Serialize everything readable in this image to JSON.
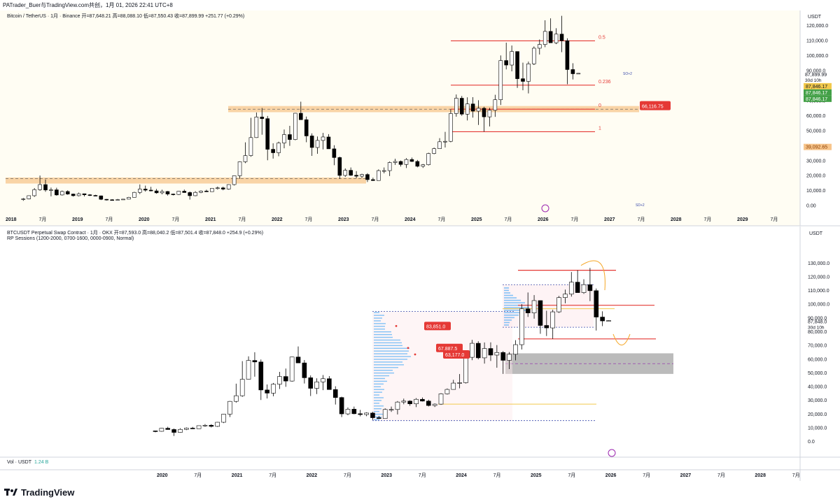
{
  "header": "PATrader_Buer与TradingView.com共创，1月 01, 2026 22:41 UTC+8",
  "brand": "TradingView",
  "colors": {
    "up": "#ffffff",
    "down": "#000000",
    "red": "#e53935",
    "orange": "#f7c58c",
    "bg_top": "#fffdf3",
    "blue": "#3949ab",
    "gold": "#f2c94c"
  },
  "top": {
    "title": "Bitcoin / TetherUS · 1月 · Binance  开=87,648.21  高=88,088.10  低=87,550.43  收=87,899.99  +251.77 (+0.29%)",
    "currency": "USDT",
    "y_ticks": [
      "120,000.0",
      "110,000.0",
      "100,000.0",
      "90,000.0",
      "80,000.0",
      "70,000.0",
      "60,000.0",
      "50,000.0",
      "40,000.0",
      "30,000.0",
      "20,000.0",
      "10,000.0",
      "0.00"
    ],
    "x_ticks": [
      "2018",
      "7月",
      "2019",
      "7月",
      "2020",
      "7月",
      "2021",
      "7月",
      "2022",
      "7月",
      "2023",
      "7月",
      "2024",
      "7月",
      "2025",
      "7月",
      "2026",
      "7月",
      "2027",
      "7月",
      "2028",
      "7月",
      "2029",
      "7月"
    ],
    "price_label": "87,899.99",
    "countdown": "30d 10h",
    "badges": [
      "87,846.17",
      "87,846.17",
      "87,846.17",
      "39,092.65"
    ],
    "fib_labels": [
      "1",
      "0.5",
      "0.236",
      "0"
    ],
    "zone_label": "66,116.75",
    "so_label": "SO+2",
    "sd_label": "SD+2"
  },
  "bottom": {
    "title": "BTCUSDT Perpetual Swap Contract · 1月 · OKX  开=87,593.0  高=88,040.2  低=87,501.4  收=87,848.0  +254.9 (+0.29%)",
    "subtitle": "RP Sessions (1200-2000, 0700-1600, 0000-0900, Normal)",
    "currency": "USDT",
    "y_ticks": [
      "130,000.0",
      "120,000.0",
      "110,000.0",
      "100,000.0",
      "90,000.0",
      "80,000.0",
      "70,000.0",
      "60,000.0",
      "50,000.0",
      "40,000.0",
      "30,000.0",
      "20,000.0",
      "10,000.0",
      "0.0"
    ],
    "x_ticks": [
      "2020",
      "7月",
      "2021",
      "7月",
      "2022",
      "7月",
      "2023",
      "7月",
      "2024",
      "7月",
      "2025",
      "7月",
      "2026",
      "7月",
      "2027",
      "7月",
      "2028",
      "7月"
    ],
    "price_label": "87,848.0",
    "countdown": "30d 10h",
    "labels": [
      "83,851.0",
      "67,887.5",
      "63,177.0"
    ],
    "vol_label": "Vol · USDT",
    "vol_value": "1.24 B"
  },
  "chart_data": [
    {
      "type": "candlestick",
      "title": "Bitcoin / TetherUS · 1月 · Binance",
      "x_start": "2017-09",
      "interval": "1M",
      "ylim": [
        -2000,
        126000
      ],
      "ohlc": [
        [
          4300,
          4900,
          3000,
          4300
        ],
        [
          4300,
          6500,
          4000,
          6400
        ],
        [
          6400,
          11500,
          5600,
          10400
        ],
        [
          10400,
          19800,
          9700,
          13800
        ],
        [
          13800,
          17200,
          9000,
          10200
        ],
        [
          10200,
          11800,
          6000,
          10300
        ],
        [
          10300,
          11700,
          6400,
          6900
        ],
        [
          6900,
          9800,
          6500,
          9200
        ],
        [
          9200,
          10000,
          7000,
          7500
        ],
        [
          7500,
          7800,
          5800,
          6400
        ],
        [
          6400,
          8500,
          6000,
          7700
        ],
        [
          7700,
          7700,
          5900,
          7000
        ],
        [
          7000,
          7400,
          6200,
          6600
        ],
        [
          6600,
          7000,
          6200,
          6300
        ],
        [
          6300,
          6500,
          3500,
          4000
        ],
        [
          4000,
          4200,
          3200,
          3700
        ],
        [
          3700,
          4100,
          3400,
          3400
        ],
        [
          3400,
          4200,
          3400,
          3800
        ],
        [
          3800,
          4100,
          3700,
          4100
        ],
        [
          4100,
          5600,
          4000,
          5300
        ],
        [
          5300,
          9000,
          5300,
          8600
        ],
        [
          8600,
          13900,
          7500,
          10800
        ],
        [
          10800,
          13100,
          9100,
          10100
        ],
        [
          10100,
          12300,
          9300,
          9600
        ],
        [
          9600,
          10900,
          7700,
          8300
        ],
        [
          8300,
          10400,
          7300,
          9200
        ],
        [
          9200,
          9500,
          6500,
          7500
        ],
        [
          7500,
          7800,
          6600,
          7200
        ],
        [
          7200,
          9600,
          6900,
          9400
        ],
        [
          9400,
          10500,
          8400,
          8500
        ],
        [
          8500,
          9200,
          3800,
          6400
        ],
        [
          6400,
          9400,
          6100,
          8600
        ],
        [
          8600,
          10000,
          8100,
          9500
        ],
        [
          9500,
          10400,
          8900,
          9100
        ],
        [
          9100,
          11400,
          9000,
          11300
        ],
        [
          11300,
          12500,
          10500,
          11600
        ],
        [
          11600,
          12400,
          10000,
          10800
        ],
        [
          10800,
          14000,
          10400,
          13800
        ],
        [
          13800,
          19900,
          13200,
          19700
        ],
        [
          19700,
          29300,
          17600,
          29000
        ],
        [
          29000,
          41900,
          28100,
          33100
        ],
        [
          33100,
          58300,
          32300,
          45100
        ],
        [
          45100,
          61800,
          44900,
          58800
        ],
        [
          58800,
          64800,
          47000,
          57700
        ],
        [
          57700,
          59500,
          30000,
          37300
        ],
        [
          37300,
          41300,
          31100,
          35000
        ],
        [
          35000,
          42400,
          32700,
          41500
        ],
        [
          41500,
          50500,
          38000,
          47100
        ],
        [
          47100,
          52900,
          39600,
          43800
        ],
        [
          43800,
          61500,
          43300,
          61300
        ],
        [
          61300,
          69000,
          57800,
          57000
        ],
        [
          57000,
          59100,
          42000,
          46200
        ],
        [
          46200,
          47900,
          32900,
          38500
        ],
        [
          38500,
          45800,
          34300,
          43200
        ],
        [
          43200,
          48200,
          37200,
          45500
        ],
        [
          45500,
          47400,
          37600,
          37600
        ],
        [
          37600,
          40000,
          26700,
          31800
        ],
        [
          31800,
          32400,
          17600,
          19900
        ],
        [
          19900,
          24600,
          18900,
          23300
        ],
        [
          23300,
          25200,
          19600,
          20000
        ],
        [
          20000,
          22800,
          18100,
          19400
        ],
        [
          19400,
          21000,
          18200,
          20500
        ],
        [
          20500,
          21400,
          15500,
          17100
        ],
        [
          17100,
          18400,
          16200,
          16500
        ],
        [
          16500,
          23900,
          16500,
          23100
        ],
        [
          23100,
          25200,
          21300,
          23100
        ],
        [
          23100,
          29200,
          19500,
          28500
        ],
        [
          28500,
          31000,
          26900,
          29200
        ],
        [
          29200,
          29800,
          25800,
          27200
        ],
        [
          27200,
          31400,
          24800,
          30500
        ],
        [
          30500,
          31800,
          28900,
          29200
        ],
        [
          29200,
          30200,
          25300,
          26000
        ],
        [
          26000,
          27500,
          24900,
          27000
        ],
        [
          27000,
          35000,
          26500,
          34500
        ],
        [
          34500,
          38400,
          34000,
          37700
        ],
        [
          37700,
          44700,
          37600,
          42300
        ],
        [
          42300,
          48900,
          38500,
          42600
        ],
        [
          42600,
          63900,
          42000,
          61100
        ],
        [
          61100,
          73800,
          59000,
          71300
        ],
        [
          71300,
          72800,
          59600,
          60700
        ],
        [
          60700,
          71900,
          56500,
          67500
        ],
        [
          67500,
          72000,
          58400,
          62700
        ],
        [
          62700,
          70000,
          53500,
          64600
        ],
        [
          64600,
          65600,
          49000,
          58900
        ],
        [
          58900,
          64900,
          52500,
          63300
        ],
        [
          63300,
          73600,
          58900,
          70300
        ],
        [
          70300,
          99800,
          66800,
          96400
        ],
        [
          96400,
          108300,
          90500,
          93400
        ],
        [
          93400,
          106400,
          89200,
          102400
        ],
        [
          102400,
          102500,
          78200,
          84300
        ],
        [
          84300,
          95000,
          76600,
          82500
        ],
        [
          82500,
          95700,
          74500,
          94200
        ],
        [
          94200,
          105800,
          93400,
          104600
        ],
        [
          104600,
          110400,
          100400,
          107100
        ],
        [
          107100,
          123200,
          105300,
          115800
        ],
        [
          115800,
          124500,
          108800,
          108200
        ],
        [
          108200,
          117900,
          107300,
          114000
        ],
        [
          114000,
          126200,
          102000,
          109600
        ],
        [
          109600,
          111200,
          80600,
          90400
        ],
        [
          90400,
          94600,
          83800,
          87600
        ],
        [
          87650,
          88090,
          87550,
          87900
        ]
      ],
      "fib_levels": {
        "1": 109500,
        "0.5": 80000,
        "0.236": 64000,
        "0": 49000
      },
      "zones": [
        [
          14500,
          18500
        ],
        [
          62000,
          66100
        ]
      ],
      "dashed_levels": [
        17800,
        64000
      ]
    },
    {
      "type": "candlestick",
      "title": "BTCUSDT Perpetual Swap Contract · 1月 · OKX",
      "x_start": "2019-12",
      "interval": "1M",
      "ylim": [
        -4000,
        136000
      ],
      "ohlc": [
        [
          7500,
          7600,
          6500,
          7200
        ],
        [
          7200,
          9600,
          6900,
          9400
        ],
        [
          9400,
          10500,
          8400,
          8500
        ],
        [
          8500,
          9200,
          3800,
          6400
        ],
        [
          6400,
          9400,
          6100,
          8600
        ],
        [
          8600,
          10000,
          8100,
          9500
        ],
        [
          9500,
          10400,
          8900,
          9100
        ],
        [
          9100,
          11400,
          9000,
          11300
        ],
        [
          11300,
          12500,
          10500,
          11600
        ],
        [
          11600,
          12400,
          10000,
          10800
        ],
        [
          10800,
          14000,
          10400,
          13800
        ],
        [
          13800,
          19900,
          13200,
          19700
        ],
        [
          19700,
          29300,
          17600,
          29000
        ],
        [
          29000,
          41900,
          28100,
          33100
        ],
        [
          33100,
          58300,
          32300,
          45100
        ],
        [
          45100,
          61800,
          44900,
          58800
        ],
        [
          58800,
          64800,
          47000,
          57700
        ],
        [
          57700,
          59500,
          30000,
          37300
        ],
        [
          37300,
          41300,
          31100,
          35000
        ],
        [
          35000,
          42400,
          32700,
          41500
        ],
        [
          41500,
          50500,
          38000,
          47100
        ],
        [
          47100,
          52900,
          39600,
          43800
        ],
        [
          43800,
          61500,
          43300,
          61300
        ],
        [
          61300,
          69000,
          57800,
          57000
        ],
        [
          57000,
          59100,
          42000,
          46200
        ],
        [
          46200,
          47900,
          32900,
          38500
        ],
        [
          38500,
          45800,
          34300,
          43200
        ],
        [
          43200,
          48200,
          37200,
          45500
        ],
        [
          45500,
          47400,
          37600,
          37600
        ],
        [
          37600,
          40000,
          26700,
          31800
        ],
        [
          31800,
          32400,
          17600,
          19900
        ],
        [
          19900,
          24600,
          18900,
          23300
        ],
        [
          23300,
          25200,
          19600,
          20000
        ],
        [
          20000,
          22800,
          18100,
          19400
        ],
        [
          19400,
          21000,
          18200,
          20500
        ],
        [
          20500,
          21400,
          15500,
          17100
        ],
        [
          17100,
          18400,
          16200,
          16500
        ],
        [
          16500,
          23900,
          16500,
          23100
        ],
        [
          23100,
          25200,
          21300,
          23100
        ],
        [
          23100,
          29200,
          19500,
          28500
        ],
        [
          28500,
          31000,
          26900,
          29200
        ],
        [
          29200,
          29800,
          25800,
          27200
        ],
        [
          27200,
          31400,
          24800,
          30500
        ],
        [
          30500,
          31800,
          28900,
          29200
        ],
        [
          29200,
          30200,
          25300,
          26000
        ],
        [
          26000,
          27500,
          24900,
          27000
        ],
        [
          27000,
          35000,
          26500,
          34500
        ],
        [
          34500,
          38400,
          34000,
          37700
        ],
        [
          37700,
          44700,
          37600,
          42300
        ],
        [
          42300,
          48900,
          38500,
          42600
        ],
        [
          42600,
          63900,
          42000,
          61100
        ],
        [
          61100,
          73800,
          59000,
          71300
        ],
        [
          71300,
          72800,
          59600,
          60700
        ],
        [
          60700,
          71900,
          56500,
          67500
        ],
        [
          67500,
          72000,
          58400,
          62700
        ],
        [
          62700,
          70000,
          53500,
          64600
        ],
        [
          64600,
          65600,
          49000,
          58900
        ],
        [
          58900,
          64900,
          52500,
          63300
        ],
        [
          63300,
          73600,
          58900,
          70300
        ],
        [
          70300,
          99800,
          66800,
          96400
        ],
        [
          96400,
          108300,
          90500,
          93400
        ],
        [
          93400,
          106400,
          89200,
          102400
        ],
        [
          102400,
          102500,
          78200,
          84300
        ],
        [
          84300,
          95000,
          76600,
          82500
        ],
        [
          82500,
          95700,
          74500,
          94200
        ],
        [
          94200,
          105800,
          93400,
          104600
        ],
        [
          104600,
          110400,
          100400,
          107100
        ],
        [
          107100,
          123200,
          105300,
          115800
        ],
        [
          115800,
          124500,
          108800,
          108200
        ],
        [
          108200,
          117900,
          107300,
          114000
        ],
        [
          114000,
          126200,
          102000,
          109600
        ],
        [
          109600,
          111200,
          80600,
          90400
        ],
        [
          90400,
          94600,
          83800,
          87600
        ],
        [
          87590,
          88040,
          87500,
          87848
        ]
      ],
      "levels": {
        "red": [
          124500,
          99000,
          74500
        ],
        "blue_dotted": [
          114000,
          83000,
          94500,
          15000
        ],
        "gold": [
          96500,
          27000
        ],
        "point_of_control": [
          83851,
          67887.5,
          63177
        ]
      },
      "zone": [
        49000,
        64000
      ]
    }
  ]
}
